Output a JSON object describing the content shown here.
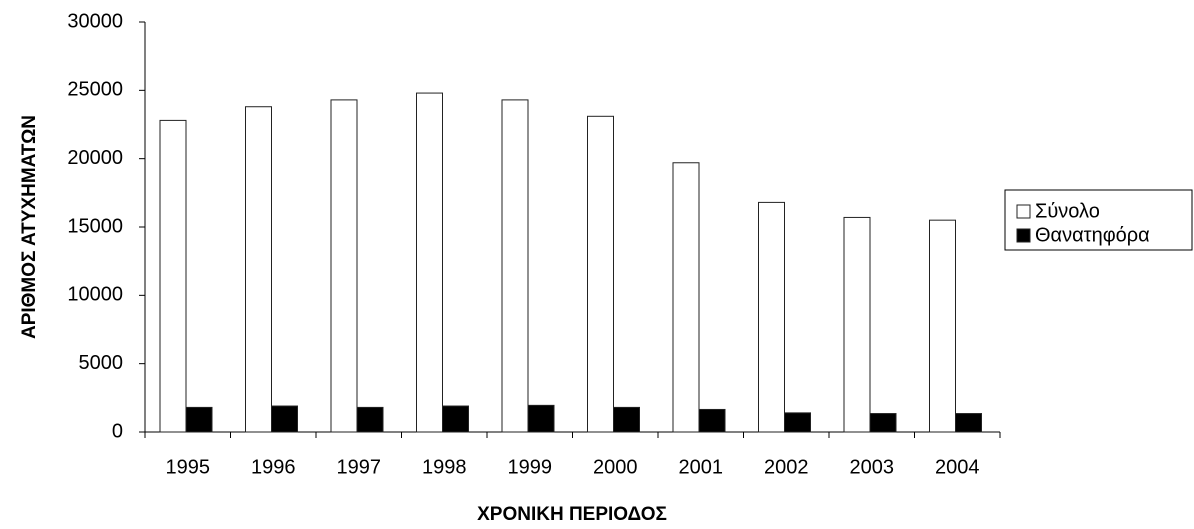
{
  "chart_data": {
    "type": "bar",
    "x_label": "ΧΡΟΝΙΚΗ ΠΕΡΙΟΔΟΣ",
    "y_label": "ΑΡΙΘΜΟΣ ΑΤΥΧΗΜΑΤΩΝ",
    "categories": [
      "1995",
      "1996",
      "1997",
      "1998",
      "1999",
      "2000",
      "2001",
      "2002",
      "2003",
      "2004"
    ],
    "series": [
      {
        "name": "Σύνολο",
        "color": "#ffffff",
        "values": [
          22800,
          23800,
          24300,
          24800,
          24300,
          23100,
          19700,
          16800,
          15700,
          15500
        ]
      },
      {
        "name": "Θανατηφόρα",
        "color": "#000000",
        "values": [
          1800,
          1900,
          1800,
          1900,
          1950,
          1800,
          1650,
          1400,
          1350,
          1350
        ]
      }
    ],
    "ylim": [
      0,
      30000
    ],
    "yticks": [
      0,
      5000,
      10000,
      15000,
      20000,
      25000,
      30000
    ],
    "grid": false,
    "legend": "right"
  }
}
